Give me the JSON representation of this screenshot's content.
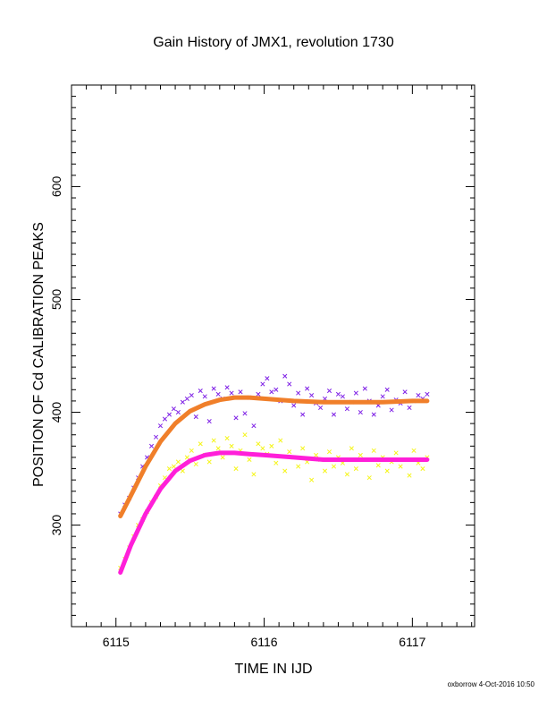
{
  "chart_data": {
    "type": "scatter",
    "title": "Gain History of JMX1, revolution 1730",
    "xlabel": "TIME IN IJD",
    "ylabel": "POSITION OF Cd CALIBRATION PEAKS",
    "xlim": [
      6114.7,
      6117.42
    ],
    "ylim": [
      210,
      690
    ],
    "x_ticks": [
      6115,
      6116,
      6117
    ],
    "y_ticks": [
      300,
      400,
      500,
      600
    ],
    "x_minor_step": 0.1,
    "y_minor_step": 10,
    "grid": false,
    "series": [
      {
        "kind": "points",
        "color": "#7f22e6",
        "marker": "x",
        "x": [
          6115.03,
          6115.06,
          6115.09,
          6115.12,
          6115.15,
          6115.18,
          6115.21,
          6115.24,
          6115.27,
          6115.3,
          6115.33,
          6115.36,
          6115.39,
          6115.42,
          6115.45,
          6115.48,
          6115.51,
          6115.54,
          6115.57,
          6115.6,
          6115.63,
          6115.66,
          6115.69,
          6115.72,
          6115.75,
          6115.78,
          6115.81,
          6115.84,
          6115.87,
          6115.9,
          6115.93,
          6115.96,
          6115.99,
          6116.02,
          6116.05,
          6116.08,
          6116.11,
          6116.14,
          6116.17,
          6116.2,
          6116.23,
          6116.26,
          6116.29,
          6116.32,
          6116.35,
          6116.38,
          6116.41,
          6116.44,
          6116.47,
          6116.5,
          6116.53,
          6116.56,
          6116.59,
          6116.62,
          6116.65,
          6116.68,
          6116.71,
          6116.74,
          6116.77,
          6116.8,
          6116.83,
          6116.86,
          6116.89,
          6116.92,
          6116.95,
          6116.98,
          6117.01,
          6117.04,
          6117.07,
          6117.1
        ],
        "y": [
          310,
          318,
          324,
          333,
          342,
          352,
          360,
          370,
          378,
          388,
          394,
          398,
          403,
          400,
          409,
          412,
          415,
          396,
          419,
          414,
          392,
          421,
          416,
          412,
          422,
          417,
          395,
          418,
          399,
          413,
          388,
          416,
          425,
          430,
          418,
          420,
          410,
          432,
          425,
          406,
          417,
          398,
          421,
          415,
          408,
          404,
          412,
          419,
          398,
          416,
          414,
          403,
          409,
          417,
          400,
          421,
          410,
          398,
          406,
          414,
          420,
          402,
          411,
          408,
          418,
          404,
          410,
          415,
          412,
          416
        ]
      },
      {
        "kind": "points",
        "color": "#f5f51a",
        "marker": "x",
        "x": [
          6115.03,
          6115.06,
          6115.09,
          6115.12,
          6115.15,
          6115.18,
          6115.21,
          6115.24,
          6115.27,
          6115.3,
          6115.33,
          6115.36,
          6115.39,
          6115.42,
          6115.45,
          6115.48,
          6115.51,
          6115.54,
          6115.57,
          6115.6,
          6115.63,
          6115.66,
          6115.69,
          6115.72,
          6115.75,
          6115.78,
          6115.81,
          6115.84,
          6115.87,
          6115.9,
          6115.93,
          6115.96,
          6115.99,
          6116.02,
          6116.05,
          6116.08,
          6116.11,
          6116.14,
          6116.17,
          6116.2,
          6116.23,
          6116.26,
          6116.29,
          6116.32,
          6116.35,
          6116.38,
          6116.41,
          6116.44,
          6116.47,
          6116.5,
          6116.53,
          6116.56,
          6116.59,
          6116.62,
          6116.65,
          6116.68,
          6116.71,
          6116.74,
          6116.77,
          6116.8,
          6116.83,
          6116.86,
          6116.89,
          6116.92,
          6116.95,
          6116.98,
          6117.01,
          6117.04,
          6117.07,
          6117.1
        ],
        "y": [
          262,
          270,
          280,
          290,
          300,
          305,
          312,
          320,
          325,
          335,
          342,
          350,
          352,
          356,
          348,
          360,
          366,
          354,
          372,
          362,
          356,
          375,
          368,
          360,
          377,
          370,
          350,
          366,
          380,
          358,
          345,
          372,
          368,
          363,
          370,
          355,
          375,
          348,
          365,
          360,
          352,
          368,
          356,
          340,
          362,
          358,
          348,
          365,
          352,
          360,
          355,
          345,
          368,
          350,
          362,
          358,
          342,
          366,
          353,
          360,
          348,
          356,
          364,
          352,
          358,
          344,
          366,
          355,
          350,
          360
        ]
      },
      {
        "kind": "fit",
        "color": "#f07f2a",
        "x": [
          6115.03,
          6115.1,
          6115.2,
          6115.3,
          6115.4,
          6115.5,
          6115.6,
          6115.7,
          6115.8,
          6115.9,
          6116.0,
          6116.2,
          6116.4,
          6116.6,
          6116.8,
          6117.0,
          6117.1
        ],
        "y": [
          308,
          326,
          352,
          374,
          390,
          401,
          407,
          411,
          413,
          413,
          412,
          410,
          409,
          409,
          409,
          410,
          410
        ]
      },
      {
        "kind": "fit",
        "color": "#ff1fd9",
        "x": [
          6115.03,
          6115.1,
          6115.2,
          6115.3,
          6115.4,
          6115.5,
          6115.6,
          6115.7,
          6115.8,
          6115.9,
          6116.0,
          6116.2,
          6116.4,
          6116.6,
          6116.8,
          6117.0,
          6117.1
        ],
        "y": [
          258,
          282,
          310,
          332,
          348,
          357,
          362,
          364,
          364,
          363,
          362,
          360,
          358,
          358,
          358,
          358,
          358
        ]
      }
    ]
  },
  "footer": {
    "credit": "oxborrow  4-Oct-2016 10:50"
  }
}
